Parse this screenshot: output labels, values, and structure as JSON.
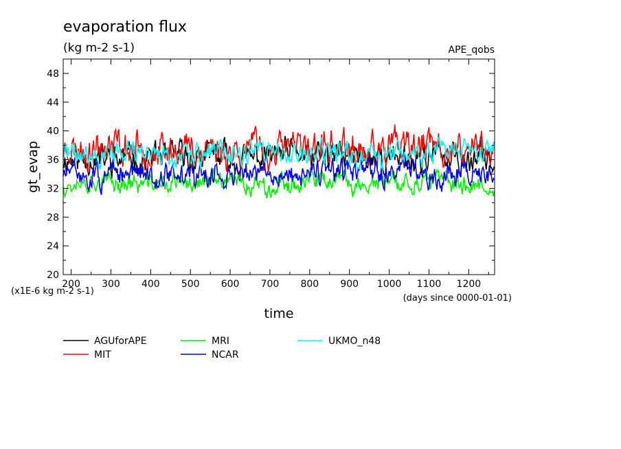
{
  "chart_data": {
    "type": "line",
    "title": "evaporation flux",
    "subtitle": "(kg m-2 s-1)",
    "dataset_label": "APE_qobs",
    "xlabel": "time",
    "ylabel": "gt_evap",
    "x_unit_note": "(days since 0000-01-01)",
    "y_scale_note": "(x1E-6 kg m-2 s-1)",
    "xlim": [
      180,
      1265
    ],
    "ylim": [
      20,
      50
    ],
    "x_ticks": [
      200,
      300,
      400,
      500,
      600,
      700,
      800,
      900,
      1000,
      1100,
      1200
    ],
    "x_tick_labels": [
      "200",
      "300",
      "400",
      "500",
      "600",
      "700",
      "800",
      "900",
      "1000",
      "1100",
      "1200"
    ],
    "y_ticks": [
      20,
      24,
      28,
      32,
      36,
      40,
      44,
      48
    ],
    "y_tick_labels": [
      "20",
      "24",
      "28",
      "32",
      "36",
      "40",
      "44",
      "48"
    ],
    "legend_position": "bottom",
    "series": [
      {
        "name": "AGUforAPE",
        "color": "#000000",
        "mean": 36.3,
        "amplitude": 1.9,
        "seed": 11,
        "x": [
          180,
          1265
        ]
      },
      {
        "name": "MIT",
        "color": "#ff0000",
        "mean": 37.5,
        "amplitude": 2.2,
        "seed": 23,
        "x": [
          180,
          1265
        ]
      },
      {
        "name": "MRI",
        "color": "#00ee00",
        "mean": 32.7,
        "amplitude": 1.3,
        "seed": 37,
        "x": [
          180,
          1265
        ]
      },
      {
        "name": "NCAR",
        "color": "#0000dd",
        "mean": 34.0,
        "amplitude": 1.6,
        "seed": 51,
        "x": [
          180,
          1265
        ]
      },
      {
        "name": "UKMO_n48",
        "color": "#00ffff",
        "mean": 36.8,
        "amplitude": 1.5,
        "seed": 71,
        "x": [
          180,
          1265
        ]
      }
    ]
  }
}
